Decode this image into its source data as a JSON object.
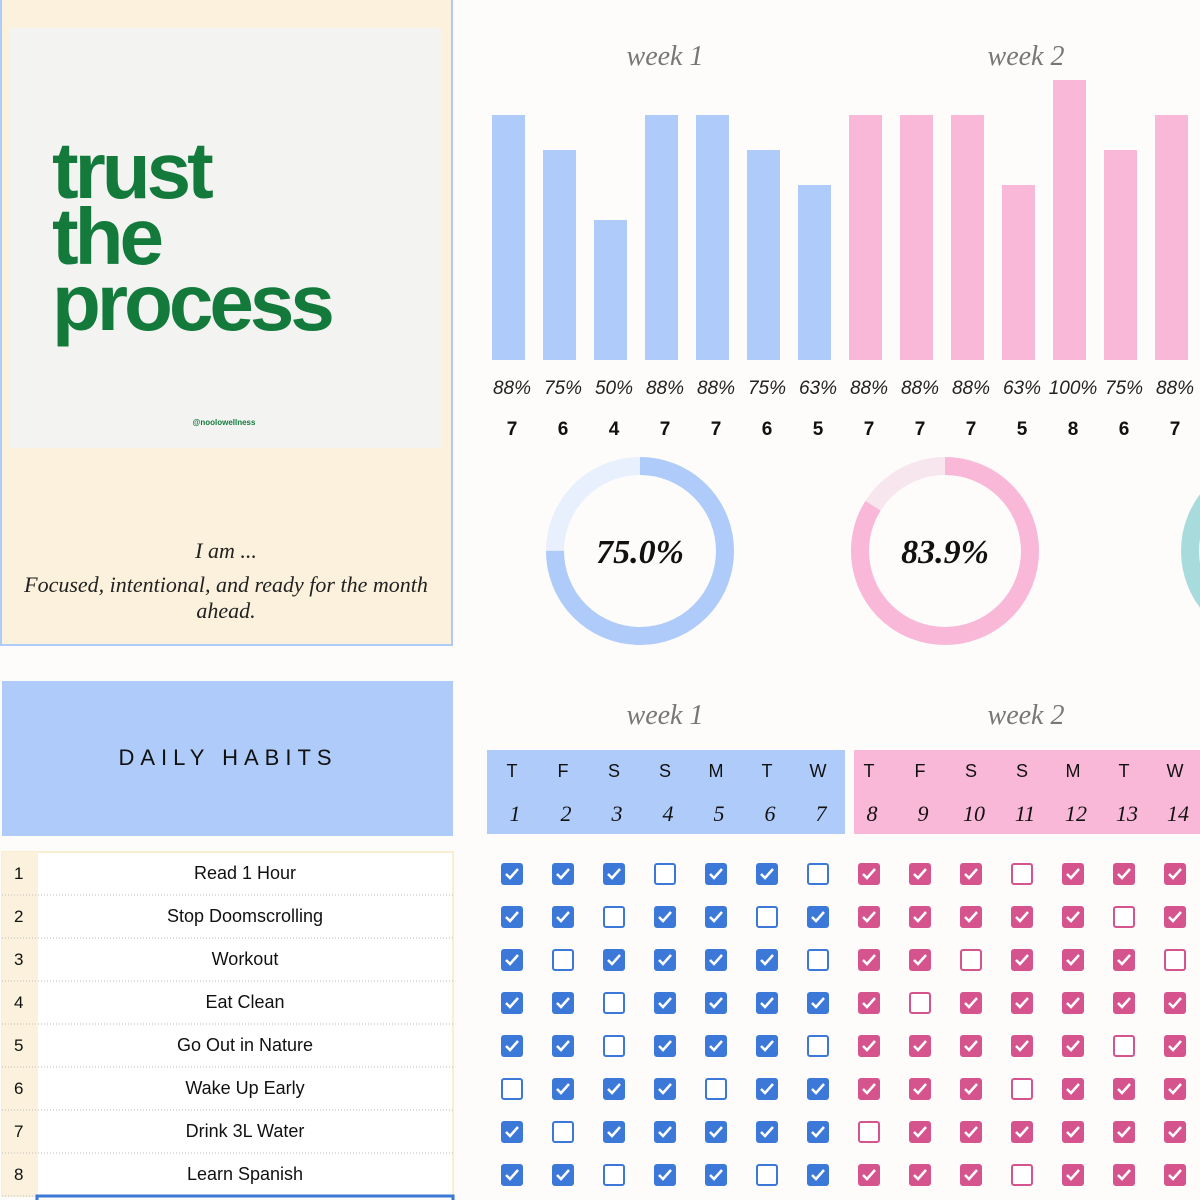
{
  "quote": {
    "lines": [
      "trust",
      "the",
      "process"
    ],
    "handle": "@noolowellness"
  },
  "affirmation": {
    "title": "I am ...",
    "text": "Focused, intentional, and ready for the month ahead."
  },
  "header": {
    "title": "DAILY HABITS"
  },
  "weeks": [
    {
      "label": "week 1",
      "color": "#aecbfa",
      "check_color": "#3c78d8",
      "track_color": "#e8effd",
      "days": [
        {
          "letter": "T",
          "date": 1,
          "percent": "88%",
          "count": 7
        },
        {
          "letter": "F",
          "date": 2,
          "percent": "75%",
          "count": 6
        },
        {
          "letter": "S",
          "date": 3,
          "percent": "50%",
          "count": 4
        },
        {
          "letter": "S",
          "date": 4,
          "percent": "88%",
          "count": 7
        },
        {
          "letter": "M",
          "date": 5,
          "percent": "88%",
          "count": 7
        },
        {
          "letter": "T",
          "date": 6,
          "percent": "75%",
          "count": 6
        },
        {
          "letter": "W",
          "date": 7,
          "percent": "63%",
          "count": 5
        }
      ],
      "completion": {
        "value": 75.0,
        "label": "75.0%"
      }
    },
    {
      "label": "week 2",
      "color": "#f9b8d8",
      "check_color": "#d5548d",
      "track_color": "#f8e6ee",
      "days": [
        {
          "letter": "T",
          "date": 8,
          "percent": "88%",
          "count": 7
        },
        {
          "letter": "F",
          "date": 9,
          "percent": "88%",
          "count": 7
        },
        {
          "letter": "S",
          "date": 10,
          "percent": "88%",
          "count": 7
        },
        {
          "letter": "S",
          "date": 11,
          "percent": "63%",
          "count": 5
        },
        {
          "letter": "M",
          "date": 12,
          "percent": "100%",
          "count": 8
        },
        {
          "letter": "T",
          "date": 13,
          "percent": "75%",
          "count": 6
        },
        {
          "letter": "W",
          "date": 14,
          "percent": "88%",
          "count": 7
        }
      ],
      "completion": {
        "value": 83.9,
        "label": "83.9%"
      }
    }
  ],
  "habits": [
    {
      "no": 1,
      "name": "Read 1 Hour",
      "checks": [
        true,
        true,
        true,
        false,
        true,
        true,
        false,
        true,
        true,
        true,
        false,
        true,
        true,
        true
      ]
    },
    {
      "no": 2,
      "name": "Stop Doomscrolling",
      "checks": [
        true,
        true,
        false,
        true,
        true,
        false,
        true,
        true,
        true,
        true,
        true,
        true,
        false,
        true
      ]
    },
    {
      "no": 3,
      "name": "Workout",
      "checks": [
        true,
        false,
        true,
        true,
        true,
        true,
        false,
        true,
        true,
        false,
        true,
        true,
        true,
        false
      ]
    },
    {
      "no": 4,
      "name": "Eat Clean",
      "checks": [
        true,
        true,
        false,
        true,
        true,
        true,
        true,
        true,
        false,
        true,
        true,
        true,
        true,
        true
      ]
    },
    {
      "no": 5,
      "name": "Go Out in Nature",
      "checks": [
        true,
        true,
        false,
        true,
        true,
        true,
        false,
        true,
        true,
        true,
        true,
        true,
        false,
        true
      ]
    },
    {
      "no": 6,
      "name": "Wake Up Early",
      "checks": [
        false,
        true,
        true,
        true,
        false,
        true,
        true,
        true,
        true,
        true,
        false,
        true,
        true,
        true
      ]
    },
    {
      "no": 7,
      "name": "Drink 3L Water",
      "checks": [
        true,
        false,
        true,
        true,
        true,
        true,
        true,
        false,
        true,
        true,
        true,
        true,
        true,
        true
      ]
    },
    {
      "no": 8,
      "name": "Learn Spanish",
      "checks": [
        true,
        true,
        false,
        true,
        true,
        false,
        true,
        true,
        true,
        true,
        false,
        true,
        true,
        true
      ]
    }
  ]
}
